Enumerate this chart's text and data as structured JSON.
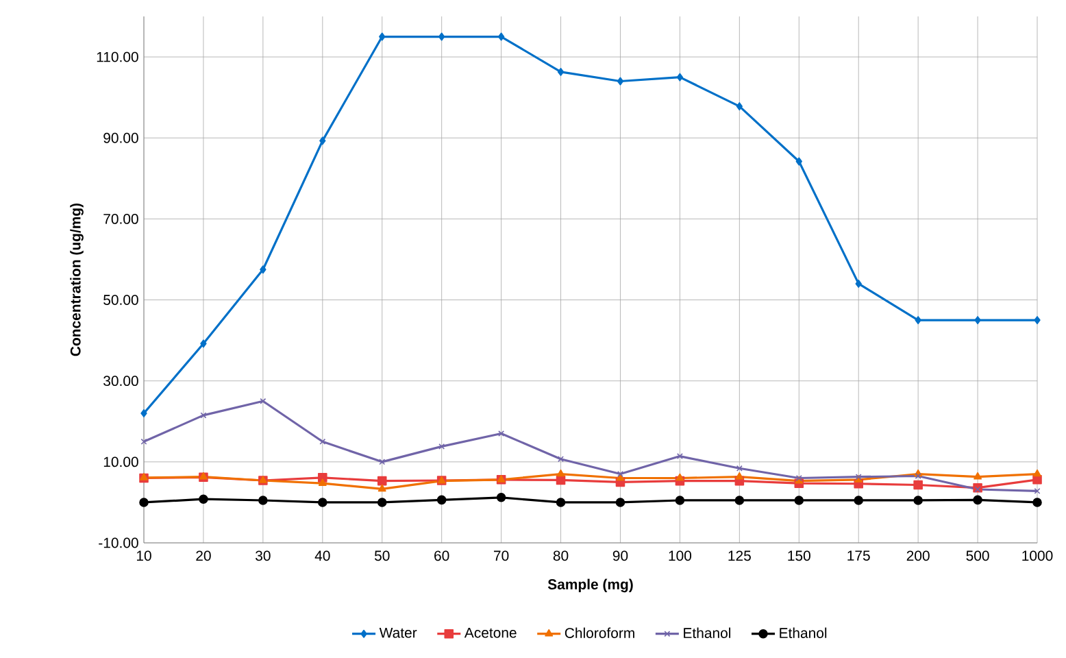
{
  "chart_data": {
    "type": "line",
    "xlabel": "Sample (mg)",
    "ylabel": "Concentration (ug/mg)",
    "categories": [
      "10",
      "20",
      "30",
      "40",
      "50",
      "60",
      "70",
      "80",
      "90",
      "100",
      "125",
      "150",
      "175",
      "200",
      "500",
      "1000"
    ],
    "series": [
      {
        "name": "Water",
        "color": "#0070c8",
        "marker": "diamond",
        "values": [
          22,
          39.2,
          57.5,
          89.3,
          115,
          115,
          115,
          106.3,
          104,
          105,
          97.8,
          84.2,
          54,
          45,
          45,
          45
        ]
      },
      {
        "name": "Acetone",
        "color": "#e83c3c",
        "marker": "square",
        "values": [
          6,
          6.2,
          5.4,
          6.1,
          5.3,
          5.4,
          5.6,
          5.5,
          5,
          5.3,
          5.3,
          4.7,
          4.6,
          4.3,
          3.6,
          5.6
        ]
      },
      {
        "name": "Chloroform",
        "color": "#f07000",
        "marker": "triangle",
        "values": [
          6.1,
          6.3,
          5.4,
          4.7,
          3.3,
          5.3,
          5.6,
          7,
          6,
          6,
          6.3,
          5.3,
          5.6,
          7,
          6.3,
          7
        ]
      },
      {
        "name": "Ethanol",
        "color": "#7064a8",
        "marker": "cross",
        "values": [
          15,
          21.5,
          25,
          15,
          10,
          13.8,
          17,
          10.7,
          7,
          11.4,
          8.4,
          6,
          6.3,
          6.5,
          3.2,
          2.8
        ]
      },
      {
        "name": "Ethanol",
        "color": "#000000",
        "marker": "circle",
        "values": [
          0,
          0.8,
          0.5,
          0,
          0,
          0.6,
          1.2,
          0,
          0,
          0.5,
          0.5,
          0.5,
          0.5,
          0.5,
          0.6,
          0
        ]
      }
    ],
    "ylim": [
      -10,
      120
    ],
    "yticks": [
      {
        "value": -10,
        "label": "-10.00"
      },
      {
        "value": 10,
        "label": "10.00"
      },
      {
        "value": 30,
        "label": "30.00"
      },
      {
        "value": 50,
        "label": "50.00"
      },
      {
        "value": 70,
        "label": "70.00"
      },
      {
        "value": 90,
        "label": "90.00"
      },
      {
        "value": 110,
        "label": "110.00"
      }
    ],
    "grid": true,
    "legend": "bottom",
    "line_style": "solid"
  }
}
